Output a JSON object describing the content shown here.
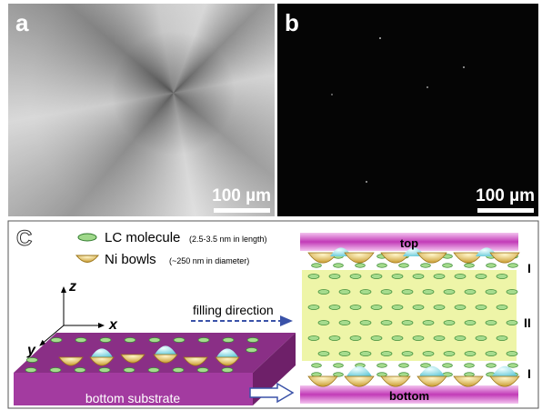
{
  "panels": [
    {
      "label": "a",
      "scale_bar": "100 µm"
    },
    {
      "label": "b",
      "scale_bar": "100 µm"
    },
    {
      "label": "C",
      "legend": [
        {
          "name": "LC molecule",
          "note": "(2.5-3.5 nm in length)"
        },
        {
          "name": "Ni bowls",
          "note": "(~250 nm in diameter)"
        }
      ],
      "axes": {
        "z": "z",
        "x": "x",
        "y": "y"
      },
      "arrow_label": "filling direction",
      "substrate_label": "bottom substrate",
      "cell": {
        "top": "top",
        "bottom": "bottom",
        "regions": [
          "I",
          "II",
          "I"
        ]
      }
    }
  ]
}
